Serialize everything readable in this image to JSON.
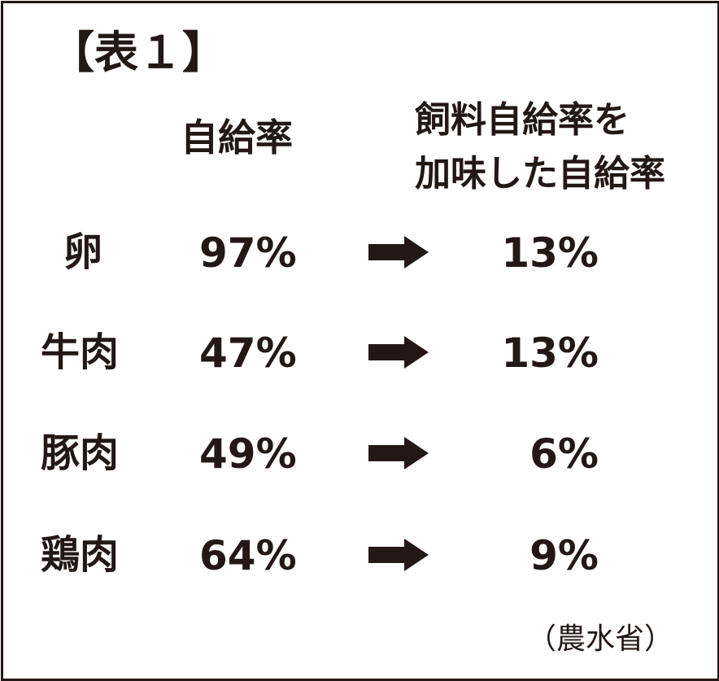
{
  "title": "【表１】",
  "headers": {
    "self_sufficiency": "自給率",
    "feed_adjusted_line1": "飼料自給率を",
    "feed_adjusted_line2": "加味した自給率"
  },
  "rows": [
    {
      "item": "卵",
      "rate": "97%",
      "feed_adjusted_rate": "13%"
    },
    {
      "item": "牛肉",
      "rate": "47%",
      "feed_adjusted_rate": "13%"
    },
    {
      "item": "豚肉",
      "rate": "49%",
      "feed_adjusted_rate": "6%"
    },
    {
      "item": "鶏肉",
      "rate": "64%",
      "feed_adjusted_rate": "9%"
    }
  ],
  "source": "（農水省）",
  "icons": {
    "arrow": "arrow-right-icon"
  },
  "colors": {
    "text": "#231815"
  }
}
